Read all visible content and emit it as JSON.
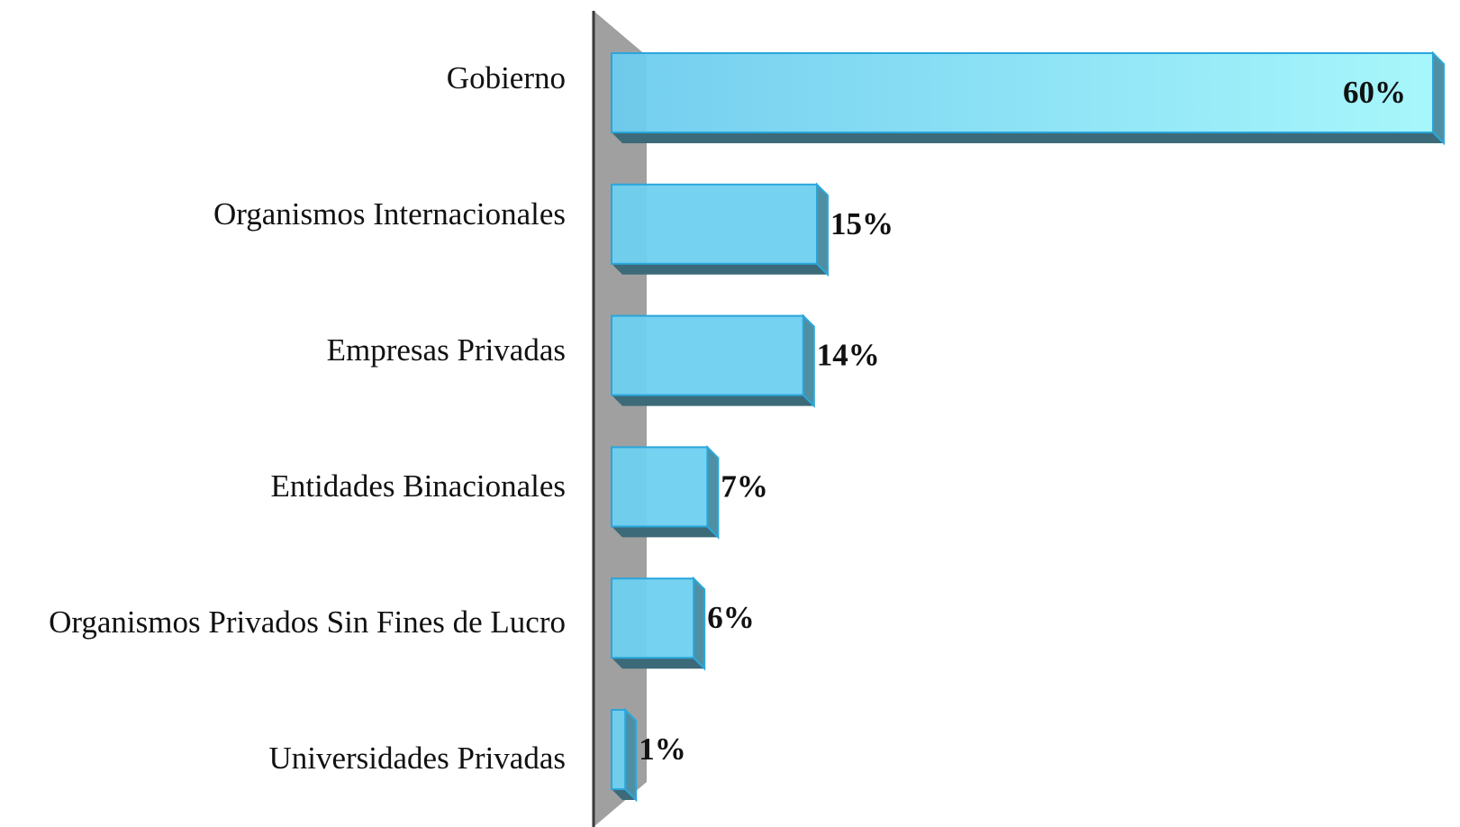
{
  "chart_data": {
    "type": "bar",
    "orientation": "horizontal",
    "categories": [
      "Gobierno",
      "Organismos Internacionales",
      "Empresas Privadas",
      "Entidades Binacionales",
      "Organismos Privados Sin Fines de Lucro",
      "Universidades Privadas"
    ],
    "values": [
      60,
      15,
      14,
      7,
      6,
      1
    ],
    "value_labels": [
      "60%",
      "15%",
      "14%",
      "7%",
      "6%",
      "1%"
    ],
    "color": "#6fd0f0",
    "xlim": [
      0,
      60
    ]
  }
}
